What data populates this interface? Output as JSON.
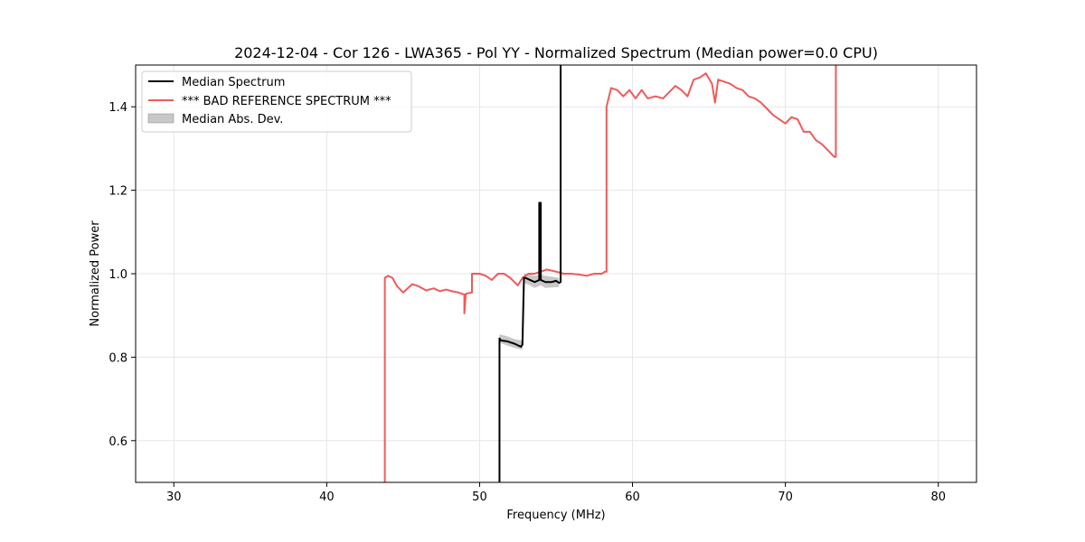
{
  "chart_data": {
    "type": "line",
    "title": "2024-12-04 - Cor 126 - LWA365 - Pol YY - Normalized Spectrum (Median power=0.0 CPU)",
    "xlabel": "Frequency (MHz)",
    "ylabel": "Normalized Power",
    "xlim": [
      27.5,
      82.5
    ],
    "ylim": [
      0.5,
      1.5
    ],
    "xticks": [
      30,
      40,
      50,
      60,
      70,
      80
    ],
    "yticks": [
      0.6,
      0.8,
      1.0,
      1.2,
      1.4
    ],
    "xtick_labels": [
      "30",
      "40",
      "50",
      "60",
      "70",
      "80"
    ],
    "ytick_labels": [
      "0.6",
      "0.8",
      "1.0",
      "1.2",
      "1.4"
    ],
    "grid": true,
    "legend_position": "top-left",
    "legend": [
      "Median Spectrum",
      "*** BAD REFERENCE SPECTRUM ***",
      "Median Abs. Dev."
    ],
    "colors": {
      "median": "#000000",
      "reference": "#f05a5a",
      "mad": "#b0b0b0"
    },
    "series": [
      {
        "name": "Median Spectrum",
        "x": [
          51.3,
          51.3,
          51.4,
          51.8,
          52.3,
          52.7,
          52.8,
          52.9,
          53.0,
          53.3,
          53.6,
          53.9,
          53.9,
          54.0,
          54.0,
          54.3,
          54.7,
          55.0,
          55.2,
          55.3,
          55.3
        ],
        "y": [
          0.5,
          0.845,
          0.84,
          0.838,
          0.832,
          0.825,
          0.83,
          0.99,
          0.99,
          0.985,
          0.98,
          0.985,
          1.17,
          1.17,
          0.985,
          0.98,
          0.98,
          0.983,
          0.978,
          0.98,
          1.5
        ]
      },
      {
        "name": "*** BAD REFERENCE SPECTRUM ***",
        "x": [
          43.8,
          43.8,
          44.0,
          44.3,
          44.6,
          45.0,
          45.3,
          45.6,
          46.0,
          46.5,
          47.0,
          47.4,
          47.8,
          48.2,
          48.6,
          49.0,
          49.0,
          49.1,
          49.5,
          49.5,
          50.0,
          50.4,
          50.8,
          51.2,
          51.6,
          52.0,
          52.5,
          52.8,
          53.2,
          53.6,
          54.0,
          54.4,
          55.0,
          55.5,
          56.0,
          56.5,
          57.0,
          57.5,
          58.0,
          58.2,
          58.3,
          58.3,
          58.6,
          59.0,
          59.4,
          59.8,
          60.2,
          60.6,
          61.0,
          61.5,
          62.0,
          62.4,
          62.8,
          63.2,
          63.6,
          64.0,
          64.4,
          64.8,
          65.2,
          65.4,
          65.6,
          66.0,
          66.4,
          66.8,
          67.2,
          67.6,
          68.0,
          68.4,
          68.8,
          69.2,
          69.6,
          70.0,
          70.4,
          70.8,
          71.2,
          71.6,
          72.0,
          72.4,
          72.8,
          73.2,
          73.3,
          73.3
        ],
        "y": [
          0.5,
          0.99,
          0.995,
          0.99,
          0.97,
          0.955,
          0.965,
          0.975,
          0.97,
          0.96,
          0.965,
          0.958,
          0.962,
          0.958,
          0.955,
          0.95,
          0.905,
          0.952,
          0.955,
          1.0,
          1.0,
          0.995,
          0.985,
          1.0,
          1.0,
          0.99,
          0.972,
          0.99,
          1.0,
          1.0,
          1.005,
          1.01,
          1.005,
          1.0,
          1.0,
          0.998,
          0.995,
          1.0,
          1.0,
          1.005,
          1.005,
          1.4,
          1.445,
          1.44,
          1.425,
          1.44,
          1.42,
          1.44,
          1.42,
          1.425,
          1.42,
          1.435,
          1.45,
          1.44,
          1.425,
          1.465,
          1.47,
          1.48,
          1.455,
          1.41,
          1.465,
          1.46,
          1.455,
          1.445,
          1.44,
          1.425,
          1.42,
          1.41,
          1.395,
          1.38,
          1.37,
          1.36,
          1.375,
          1.37,
          1.34,
          1.34,
          1.32,
          1.31,
          1.295,
          1.28,
          1.28,
          1.5
        ]
      }
    ],
    "mad_band": {
      "name": "Median Abs. Dev.",
      "x": [
        51.3,
        51.8,
        52.3,
        52.8,
        52.9,
        53.3,
        53.6,
        54.0,
        54.3,
        54.7,
        55.2
      ],
      "upper": [
        0.855,
        0.85,
        0.843,
        0.84,
        1.0,
        0.998,
        0.995,
        0.998,
        0.995,
        0.993,
        0.99
      ],
      "lower": [
        0.835,
        0.828,
        0.822,
        0.818,
        0.978,
        0.972,
        0.966,
        0.972,
        0.966,
        0.967,
        0.968
      ]
    }
  }
}
